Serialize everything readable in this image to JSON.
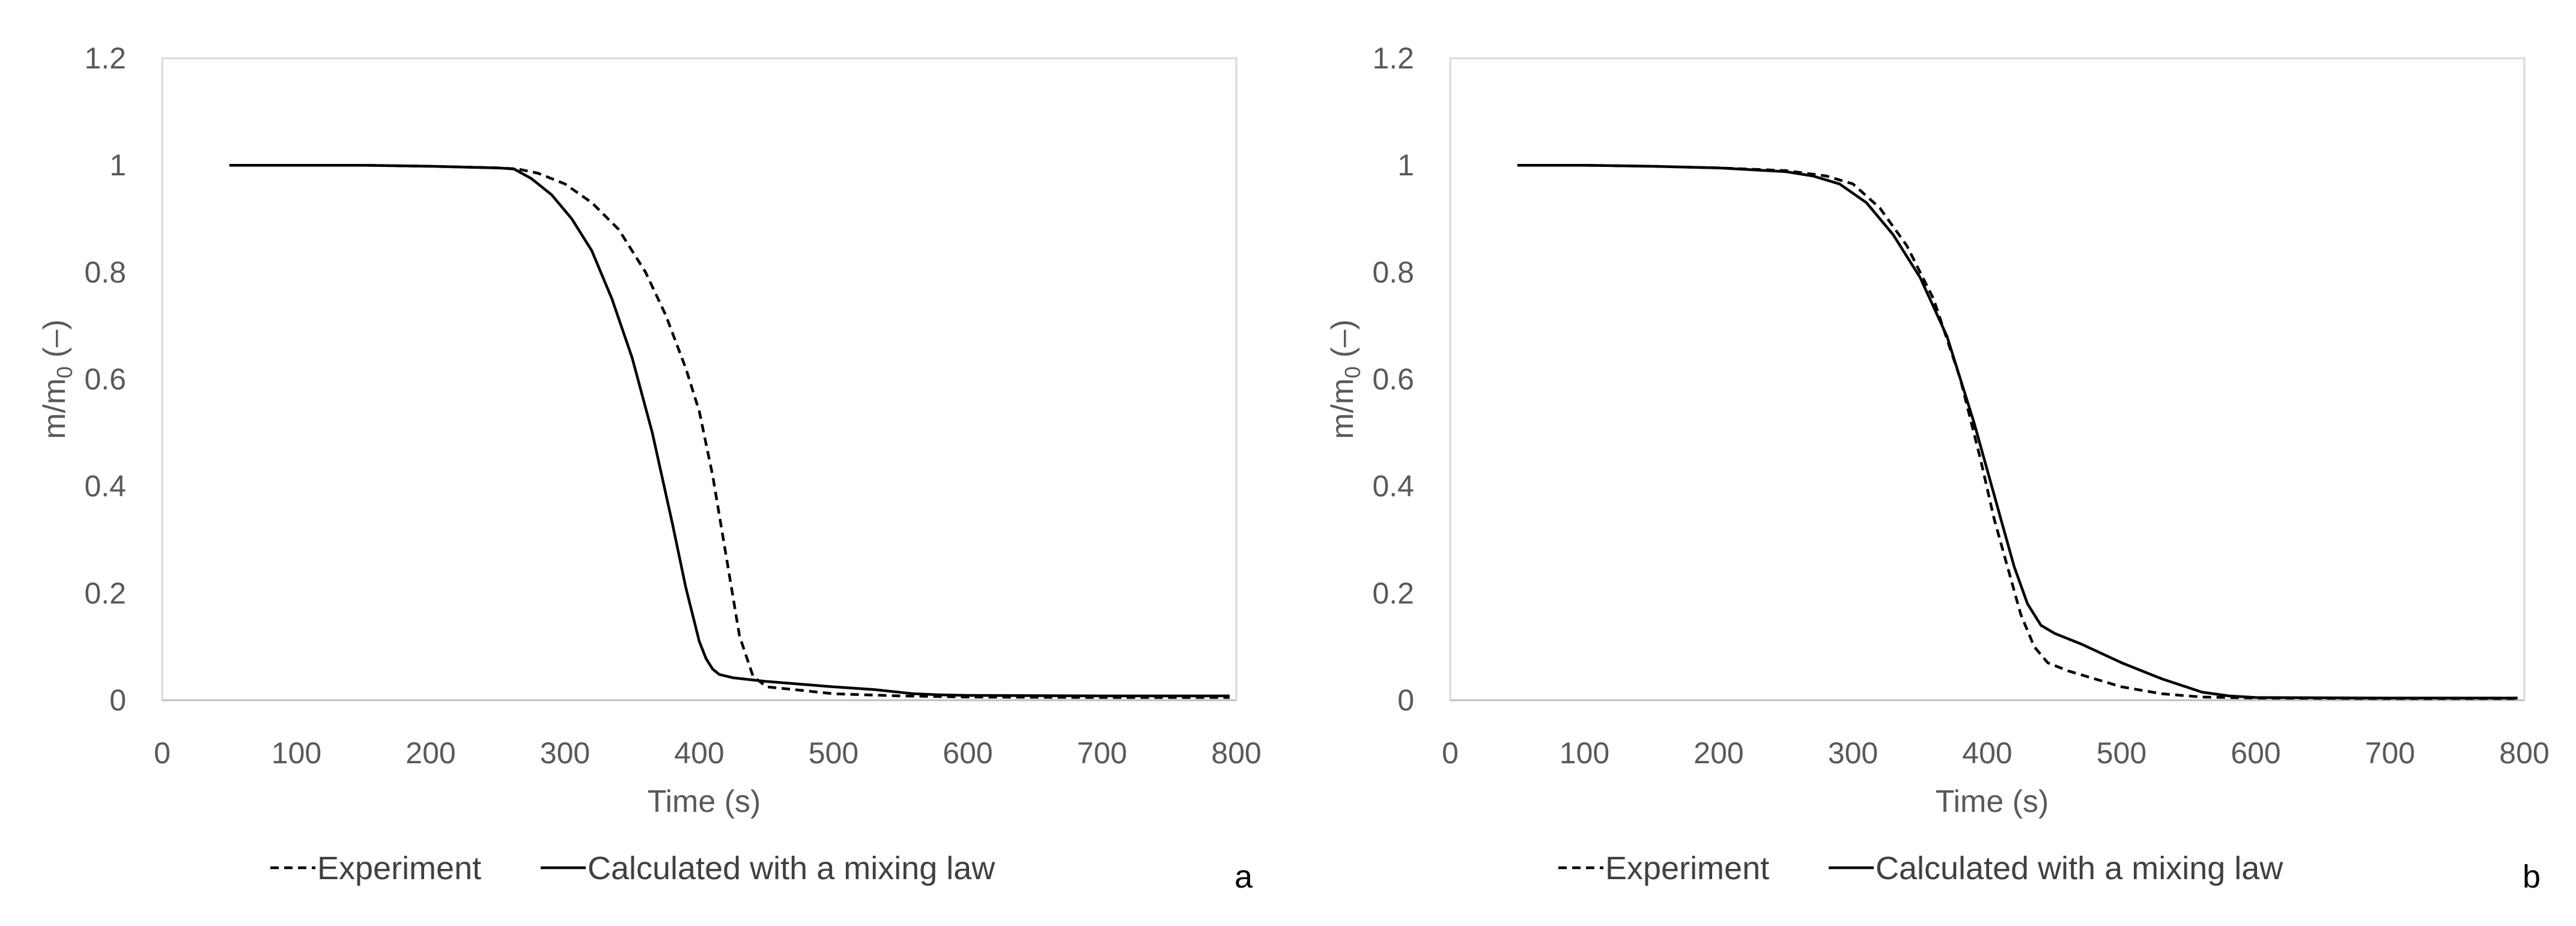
{
  "chart_data": [
    {
      "type": "line",
      "panel_label": "a",
      "xlabel": "Time (s)",
      "ylabel_main": "m/m",
      "ylabel_sub": "0",
      "ylabel_unit": " (–)",
      "xlim": [
        0,
        800
      ],
      "ylim": [
        0,
        1.2
      ],
      "xticks": [
        "0",
        "100",
        "200",
        "300",
        "400",
        "500",
        "600",
        "700",
        "800"
      ],
      "yticks": [
        "0",
        "0.2",
        "0.4",
        "0.6",
        "0.8",
        "1",
        "1.2"
      ],
      "grid": false,
      "legend_position": "bottom",
      "series": [
        {
          "name": "Experiment",
          "style": "dashed",
          "color": "#000000",
          "x": [
            50,
            100,
            150,
            200,
            250,
            265,
            280,
            300,
            320,
            340,
            360,
            375,
            390,
            400,
            410,
            420,
            430,
            440,
            450,
            470,
            500,
            550,
            600,
            700,
            795
          ],
          "y": [
            1.0,
            1.0,
            1.0,
            0.998,
            0.995,
            0.993,
            0.985,
            0.965,
            0.93,
            0.88,
            0.8,
            0.72,
            0.62,
            0.54,
            0.42,
            0.27,
            0.12,
            0.045,
            0.025,
            0.02,
            0.012,
            0.008,
            0.006,
            0.005,
            0.005
          ]
        },
        {
          "name": "Calculated with a mixing law",
          "style": "solid",
          "color": "#000000",
          "x": [
            50,
            100,
            150,
            200,
            250,
            262,
            275,
            290,
            305,
            320,
            335,
            350,
            365,
            380,
            390,
            400,
            405,
            410,
            415,
            425,
            450,
            500,
            530,
            560,
            580,
            600,
            700,
            795
          ],
          "y": [
            1.0,
            1.0,
            1.0,
            0.998,
            0.995,
            0.993,
            0.975,
            0.945,
            0.9,
            0.84,
            0.75,
            0.64,
            0.5,
            0.33,
            0.21,
            0.11,
            0.078,
            0.058,
            0.048,
            0.042,
            0.035,
            0.025,
            0.02,
            0.012,
            0.01,
            0.009,
            0.008,
            0.008
          ]
        }
      ]
    },
    {
      "type": "line",
      "panel_label": "b",
      "xlabel": "Time (s)",
      "ylabel_main": "m/m",
      "ylabel_sub": "0",
      "ylabel_unit": " (–)",
      "xlim": [
        0,
        800
      ],
      "ylim": [
        0,
        1.2
      ],
      "xticks": [
        "0",
        "100",
        "200",
        "300",
        "400",
        "500",
        "600",
        "700",
        "800"
      ],
      "yticks": [
        "0",
        "0.2",
        "0.4",
        "0.6",
        "0.8",
        "1",
        "1.2"
      ],
      "grid": false,
      "legend_position": "bottom",
      "series": [
        {
          "name": "Experiment",
          "style": "dashed",
          "color": "#000000",
          "x": [
            50,
            100,
            150,
            200,
            250,
            280,
            300,
            320,
            340,
            360,
            380,
            395,
            405,
            415,
            425,
            435,
            445,
            460,
            480,
            500,
            530,
            560,
            600,
            700,
            795
          ],
          "y": [
            1.0,
            1.0,
            0.998,
            0.995,
            0.99,
            0.98,
            0.965,
            0.92,
            0.85,
            0.75,
            0.6,
            0.45,
            0.34,
            0.25,
            0.16,
            0.1,
            0.07,
            0.055,
            0.04,
            0.025,
            0.012,
            0.006,
            0.004,
            0.003,
            0.003
          ]
        },
        {
          "name": "Calculated with a mixing law",
          "style": "solid",
          "color": "#000000",
          "x": [
            50,
            100,
            150,
            200,
            250,
            270,
            290,
            310,
            330,
            350,
            370,
            390,
            400,
            410,
            420,
            430,
            440,
            450,
            470,
            500,
            530,
            560,
            580,
            600,
            700,
            795
          ],
          "y": [
            1.0,
            1.0,
            0.998,
            0.995,
            0.988,
            0.98,
            0.965,
            0.93,
            0.87,
            0.79,
            0.68,
            0.52,
            0.43,
            0.34,
            0.25,
            0.18,
            0.14,
            0.125,
            0.105,
            0.07,
            0.04,
            0.015,
            0.008,
            0.005,
            0.004,
            0.004
          ]
        }
      ]
    }
  ]
}
